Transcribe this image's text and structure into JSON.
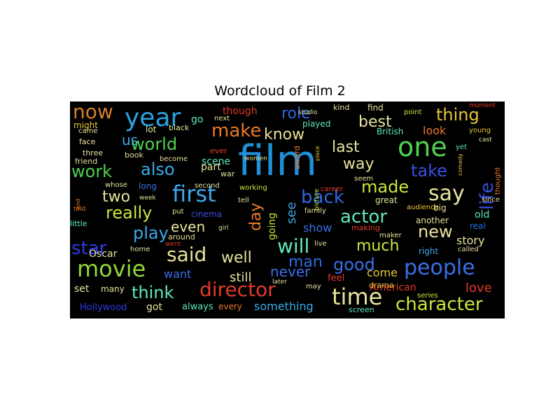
{
  "title": "Wordcloud of Film 2",
  "chart_data": {
    "type": "wordcloud",
    "title": "Wordcloud of Film 2",
    "background": "#000000",
    "words": [
      {
        "text": "film",
        "weight": 60,
        "color": "#1e90d8"
      },
      {
        "text": "one",
        "weight": 38,
        "color": "#4fd34f"
      },
      {
        "text": "year",
        "weight": 36,
        "color": "#2aa2e0"
      },
      {
        "text": "movie",
        "weight": 32,
        "color": "#8fd63a"
      },
      {
        "text": "first",
        "weight": 32,
        "color": "#3ba9e8"
      },
      {
        "text": "time",
        "weight": 32,
        "color": "#e8e39a"
      },
      {
        "text": "say",
        "weight": 30,
        "color": "#e8e39a"
      },
      {
        "text": "people",
        "weight": 30,
        "color": "#3a6fe8"
      },
      {
        "text": "director",
        "weight": 28,
        "color": "#e23a28"
      },
      {
        "text": "said",
        "weight": 28,
        "color": "#e8e39a"
      },
      {
        "text": "will",
        "weight": 28,
        "color": "#5ee8c0"
      },
      {
        "text": "now",
        "weight": 28,
        "color": "#d47f2a"
      },
      {
        "text": "make",
        "weight": 26,
        "color": "#e87a2a"
      },
      {
        "text": "life",
        "weight": 26,
        "color": "#3a4fe0"
      },
      {
        "text": "character",
        "weight": 26,
        "color": "#c8e83a"
      },
      {
        "text": "star",
        "weight": 26,
        "color": "#2d3ae8"
      },
      {
        "text": "back",
        "weight": 26,
        "color": "#2a6ae0"
      },
      {
        "text": "actor",
        "weight": 26,
        "color": "#5ee8c0"
      },
      {
        "text": "thing",
        "weight": 24,
        "color": "#e8c83a"
      },
      {
        "text": "world",
        "weight": 24,
        "color": "#4fd34f"
      },
      {
        "text": "also",
        "weight": 24,
        "color": "#3ba9e8"
      },
      {
        "text": "made",
        "weight": 24,
        "color": "#c8e83a"
      },
      {
        "text": "take",
        "weight": 24,
        "color": "#3a4fe0"
      },
      {
        "text": "work",
        "weight": 24,
        "color": "#4fd34f"
      },
      {
        "text": "really",
        "weight": 24,
        "color": "#c8e83a"
      },
      {
        "text": "play",
        "weight": 24,
        "color": "#3ba9e8"
      },
      {
        "text": "think",
        "weight": 24,
        "color": "#5ee8c0"
      },
      {
        "text": "good",
        "weight": 24,
        "color": "#3a6fe8"
      },
      {
        "text": "new",
        "weight": 24,
        "color": "#e8e39a"
      },
      {
        "text": "much",
        "weight": 22,
        "color": "#c8e83a"
      },
      {
        "text": "way",
        "weight": 22,
        "color": "#e8e39a"
      },
      {
        "text": "best",
        "weight": 22,
        "color": "#e8e39a"
      },
      {
        "text": "last",
        "weight": 22,
        "color": "#e8e39a"
      },
      {
        "text": "know",
        "weight": 22,
        "color": "#e8e39a"
      },
      {
        "text": "role",
        "weight": 22,
        "color": "#2a6ae0"
      },
      {
        "text": "two",
        "weight": 22,
        "color": "#e8e39a"
      },
      {
        "text": "day",
        "weight": 22,
        "color": "#e87a2a"
      },
      {
        "text": "man",
        "weight": 22,
        "color": "#2a6ae0"
      },
      {
        "text": "well",
        "weight": 22,
        "color": "#e8e39a"
      },
      {
        "text": "never",
        "weight": 20,
        "color": "#3a6fe8"
      },
      {
        "text": "even",
        "weight": 20,
        "color": "#e8e39a"
      },
      {
        "text": "us",
        "weight": 20,
        "color": "#3ba9e8"
      },
      {
        "text": "love",
        "weight": 18,
        "color": "#e23a28"
      },
      {
        "text": "see",
        "weight": 18,
        "color": "#3ba9e8"
      },
      {
        "text": "going",
        "weight": 14,
        "color": "#c8e83a"
      },
      {
        "text": "show",
        "weight": 16,
        "color": "#3a6fe8"
      },
      {
        "text": "story",
        "weight": 16,
        "color": "#e8e39a"
      },
      {
        "text": "still",
        "weight": 18,
        "color": "#e8e39a"
      },
      {
        "text": "want",
        "weight": 16,
        "color": "#3a6fe8"
      },
      {
        "text": "come",
        "weight": 16,
        "color": "#e8c83a"
      },
      {
        "text": "look",
        "weight": 16,
        "color": "#e87a2a"
      },
      {
        "text": "something",
        "weight": 16,
        "color": "#3ba9e8"
      },
      {
        "text": "scene",
        "weight": 14,
        "color": "#5ee8c0"
      },
      {
        "text": "part",
        "weight": 14,
        "color": "#e8e39a"
      },
      {
        "text": "go",
        "weight": 14,
        "color": "#5ee8c0"
      },
      {
        "text": "though",
        "weight": 14,
        "color": "#e23a28"
      },
      {
        "text": "played",
        "weight": 12,
        "color": "#5ee8c0"
      },
      {
        "text": "great",
        "weight": 12,
        "color": "#e8e39a"
      },
      {
        "text": "old",
        "weight": 14,
        "color": "#5ee8c0"
      },
      {
        "text": "another",
        "weight": 12,
        "color": "#e8e39a"
      },
      {
        "text": "right",
        "weight": 12,
        "color": "#3ba9e8"
      },
      {
        "text": "American",
        "weight": 14,
        "color": "#e23a28"
      },
      {
        "text": "Oscar",
        "weight": 14,
        "color": "#e8e39a"
      },
      {
        "text": "Hollywood",
        "weight": 13,
        "color": "#2d3ae8"
      },
      {
        "text": "set",
        "weight": 14,
        "color": "#e8e39a"
      },
      {
        "text": "got",
        "weight": 14,
        "color": "#e8e39a"
      },
      {
        "text": "always",
        "weight": 13,
        "color": "#5ee8c0"
      },
      {
        "text": "every",
        "weight": 12,
        "color": "#e87a2a"
      },
      {
        "text": "many",
        "weight": 12,
        "color": "#e8e39a"
      },
      {
        "text": "feel",
        "weight": 13,
        "color": "#e23a28"
      },
      {
        "text": "drama",
        "weight": 11,
        "color": "#e8c83a"
      },
      {
        "text": "screen",
        "weight": 11,
        "color": "#5ee8c0"
      },
      {
        "text": "series",
        "weight": 10,
        "color": "#c8e83a"
      },
      {
        "text": "British",
        "weight": 12,
        "color": "#5ee8c0"
      },
      {
        "text": "kind",
        "weight": 11,
        "color": "#e8e39a"
      },
      {
        "text": "find",
        "weight": 12,
        "color": "#e8e39a"
      },
      {
        "text": "point",
        "weight": 10,
        "color": "#c8e83a"
      },
      {
        "text": "moment",
        "weight": 9,
        "color": "#e23a28"
      },
      {
        "text": "young",
        "weight": 10,
        "color": "#e8c83a"
      },
      {
        "text": "cast",
        "weight": 9,
        "color": "#e8e39a"
      },
      {
        "text": "yet",
        "weight": 10,
        "color": "#5ee8c0"
      },
      {
        "text": "comedy",
        "weight": 8,
        "color": "#e8c83a"
      },
      {
        "text": "thought",
        "weight": 10,
        "color": "#e87a2a"
      },
      {
        "text": "since",
        "weight": 10,
        "color": "#e8e39a"
      },
      {
        "text": "big",
        "weight": 12,
        "color": "#e8e39a"
      },
      {
        "text": "real",
        "weight": 12,
        "color": "#2a6ae0"
      },
      {
        "text": "called",
        "weight": 10,
        "color": "#e8e39a"
      },
      {
        "text": "family",
        "weight": 10,
        "color": "#e8e39a"
      },
      {
        "text": "audience",
        "weight": 10,
        "color": "#e8c83a"
      },
      {
        "text": "career",
        "weight": 10,
        "color": "#e23a28"
      },
      {
        "text": "picture",
        "weight": 9,
        "color": "#c8e83a"
      },
      {
        "text": "seem",
        "weight": 10,
        "color": "#e8e39a"
      },
      {
        "text": "award",
        "weight": 11,
        "color": "#e87a2a"
      },
      {
        "text": "studio",
        "weight": 9,
        "color": "#e8e39a"
      },
      {
        "text": "place",
        "weight": 8,
        "color": "#e8c83a"
      },
      {
        "text": "making",
        "weight": 11,
        "color": "#e23a28"
      },
      {
        "text": "maker",
        "weight": 10,
        "color": "#e8e39a"
      },
      {
        "text": "live",
        "weight": 10,
        "color": "#e8e39a"
      },
      {
        "text": "may",
        "weight": 10,
        "color": "#e8e39a"
      },
      {
        "text": "later",
        "weight": 9,
        "color": "#e8e39a"
      },
      {
        "text": "cinema",
        "weight": 12,
        "color": "#3a4fe0"
      },
      {
        "text": "working",
        "weight": 10,
        "color": "#c8e83a"
      },
      {
        "text": "second",
        "weight": 10,
        "color": "#e8e39a"
      },
      {
        "text": "tell",
        "weight": 10,
        "color": "#e8e39a"
      },
      {
        "text": "girl",
        "weight": 9,
        "color": "#e8e39a"
      },
      {
        "text": "around",
        "weight": 11,
        "color": "#e8e39a"
      },
      {
        "text": "home",
        "weight": 10,
        "color": "#e8e39a"
      },
      {
        "text": "went",
        "weight": 9,
        "color": "#e23a28"
      },
      {
        "text": "put",
        "weight": 10,
        "color": "#e8e39a"
      },
      {
        "text": "little",
        "weight": 11,
        "color": "#5ee8c0"
      },
      {
        "text": "told",
        "weight": 9,
        "color": "#e87a2a"
      },
      {
        "text": "end",
        "weight": 8,
        "color": "#e87a2a"
      },
      {
        "text": "whose",
        "weight": 10,
        "color": "#e8e39a"
      },
      {
        "text": "long",
        "weight": 12,
        "color": "#3a6fe8"
      },
      {
        "text": "week",
        "weight": 9,
        "color": "#e8e39a"
      },
      {
        "text": "war",
        "weight": 11,
        "color": "#e8e39a"
      },
      {
        "text": "ever",
        "weight": 11,
        "color": "#e23a28"
      },
      {
        "text": "women",
        "weight": 9,
        "color": "#e8e39a"
      },
      {
        "text": "book",
        "weight": 11,
        "color": "#e8e39a"
      },
      {
        "text": "become",
        "weight": 10,
        "color": "#e8e39a"
      },
      {
        "text": "friend",
        "weight": 11,
        "color": "#e8e39a"
      },
      {
        "text": "three",
        "weight": 11,
        "color": "#e8e39a"
      },
      {
        "text": "face",
        "weight": 11,
        "color": "#e8e39a"
      },
      {
        "text": "came",
        "weight": 10,
        "color": "#e8e39a"
      },
      {
        "text": "might",
        "weight": 12,
        "color": "#e8c83a"
      },
      {
        "text": "lot",
        "weight": 12,
        "color": "#e8e39a"
      },
      {
        "text": "black",
        "weight": 11,
        "color": "#e8e39a"
      },
      {
        "text": "next",
        "weight": 10,
        "color": "#e8e39a"
      }
    ]
  }
}
